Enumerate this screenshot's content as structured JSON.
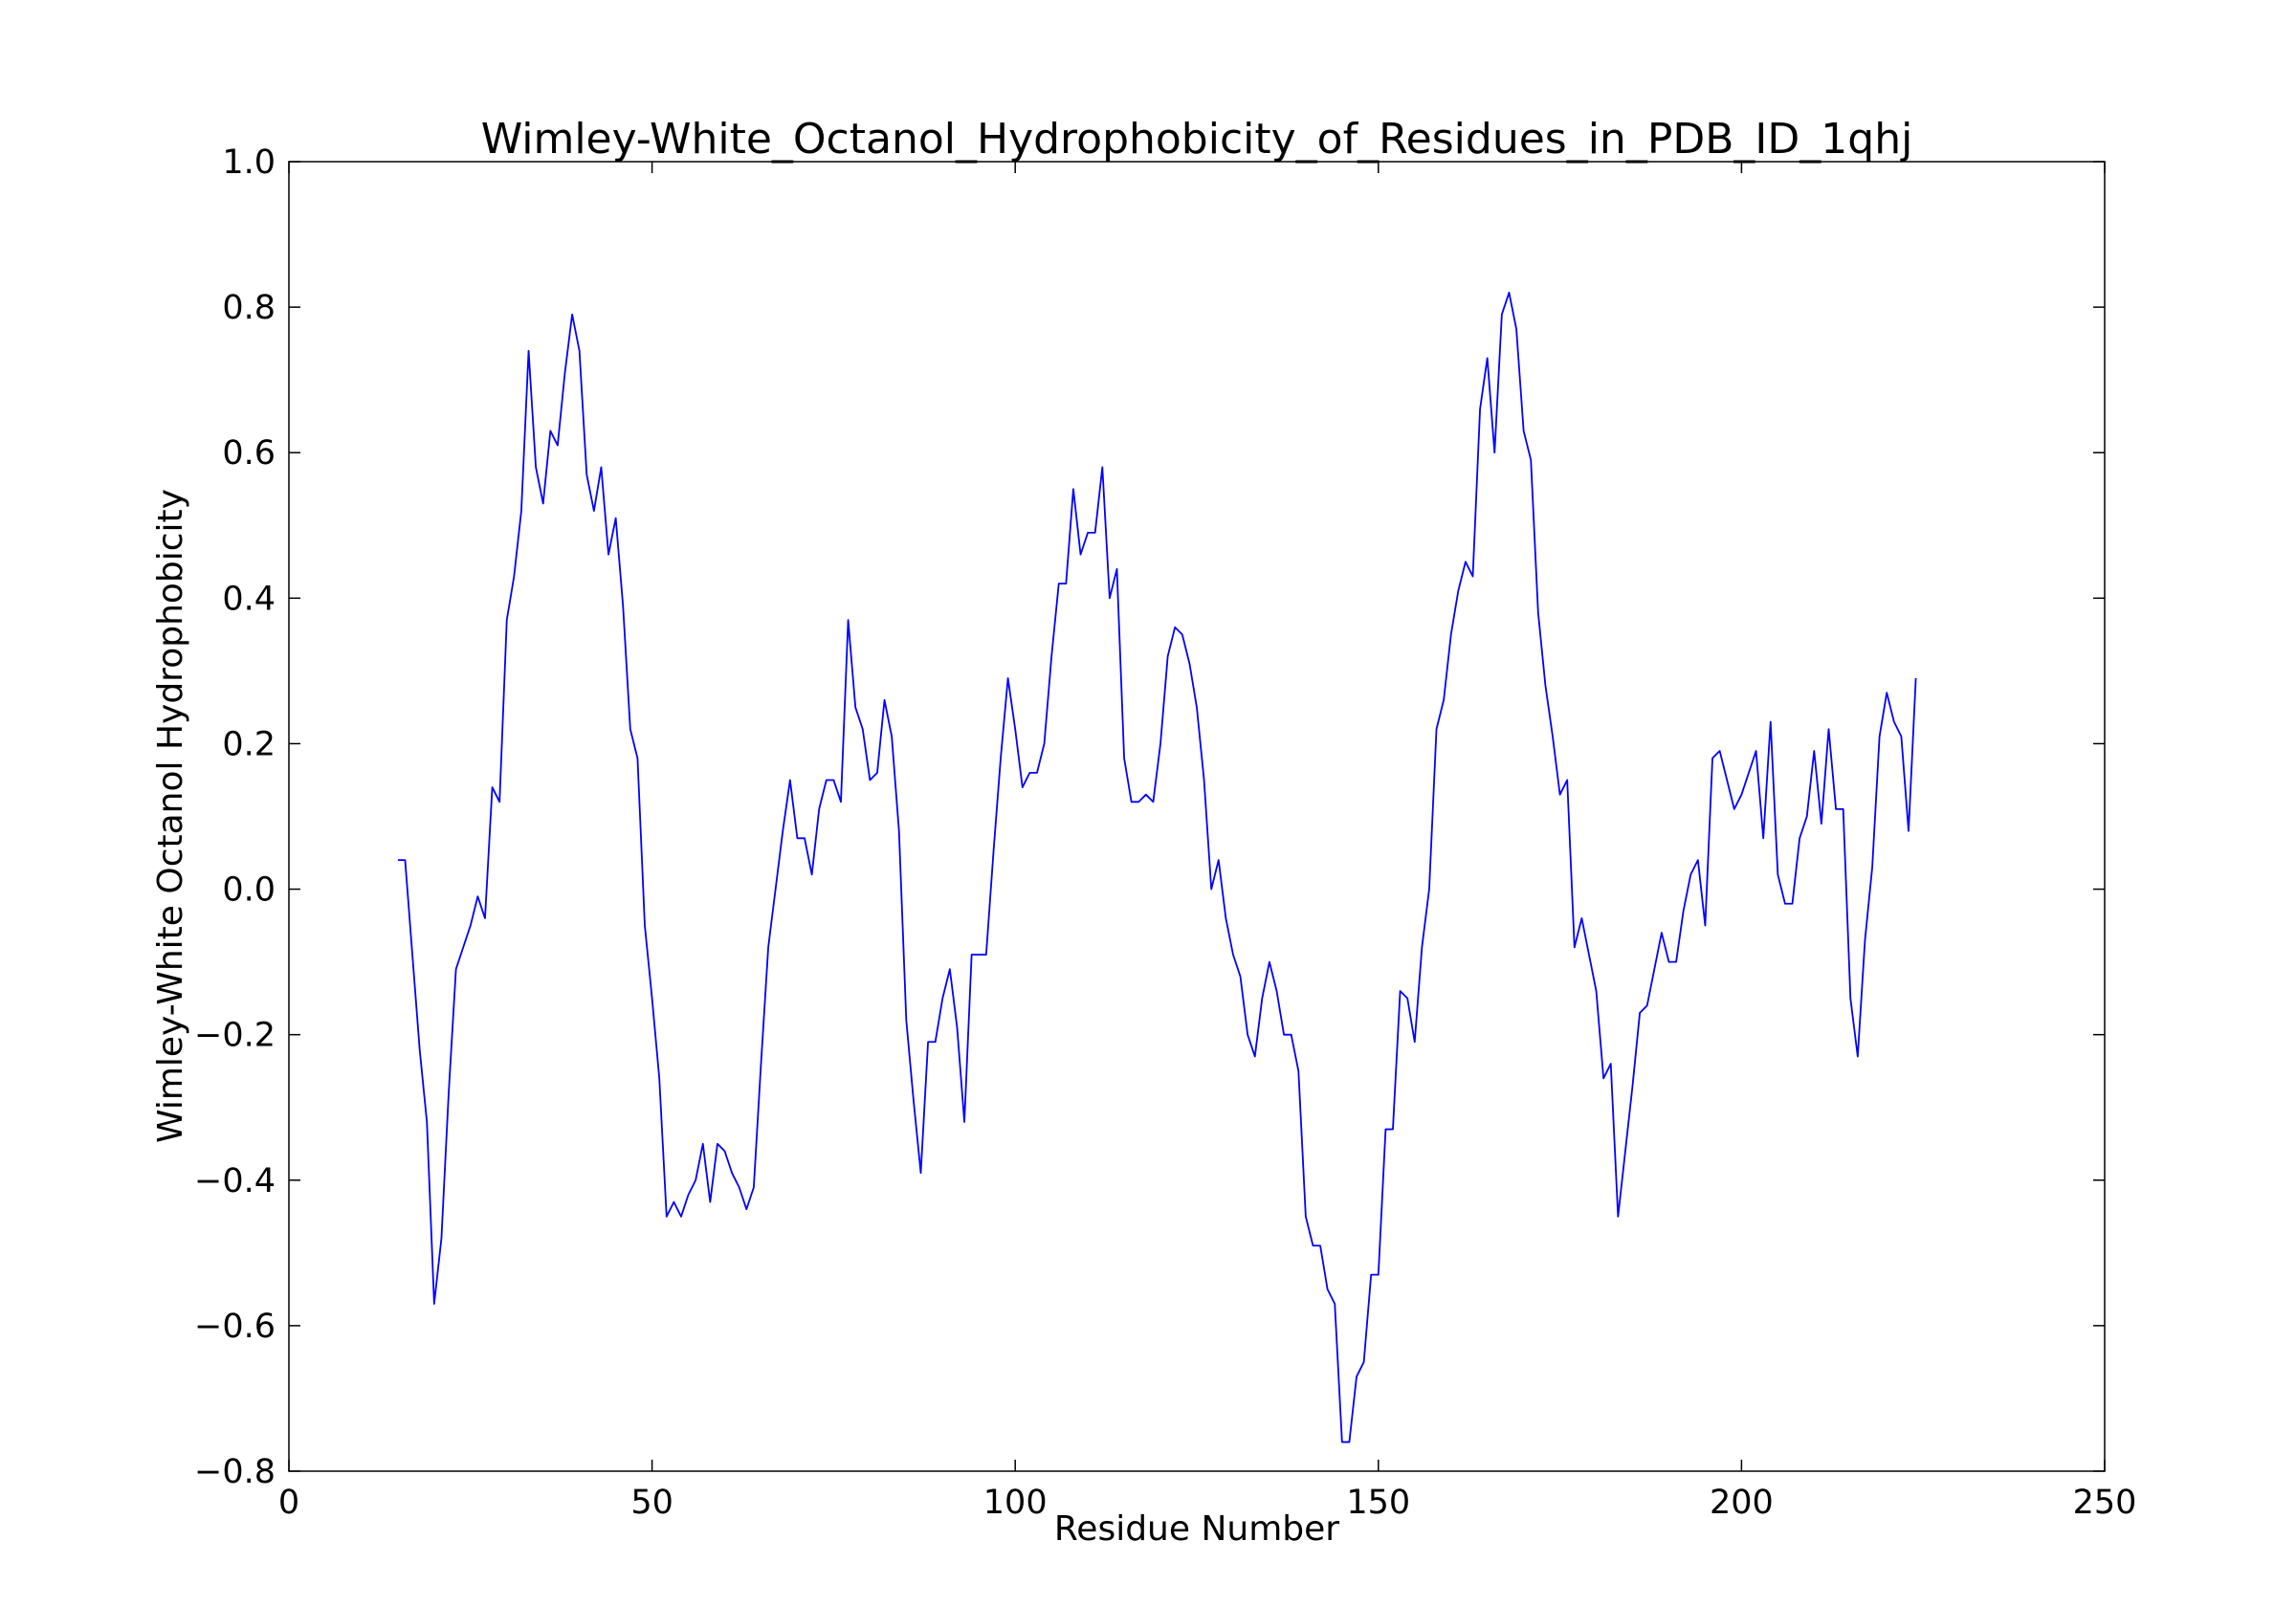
{
  "chart_data": {
    "type": "line",
    "title": "Wimley-White_Octanol_Hydrophobicity_of_Residues_in_PDB_ID_1qhj",
    "xlabel": "Residue Number",
    "ylabel": "Wimley-White Octanol Hydrophobicity",
    "xlim": [
      0,
      250
    ],
    "ylim": [
      -0.8,
      1.0
    ],
    "xticks": [
      0,
      50,
      100,
      150,
      200,
      250
    ],
    "yticks": [
      -0.8,
      -0.6,
      -0.4,
      -0.2,
      0.0,
      0.2,
      0.4,
      0.6,
      0.8,
      1.0
    ],
    "xtick_labels": [
      "0",
      "50",
      "100",
      "150",
      "200",
      "250"
    ],
    "ytick_labels": [
      "−0.8",
      "−0.6",
      "−0.4",
      "−0.2",
      "0.0",
      "0.2",
      "0.4",
      "0.6",
      "0.8",
      "1.0"
    ],
    "grid": false,
    "color": "#0000ff",
    "series": [
      {
        "x": [
          15,
          16,
          17,
          18,
          19,
          20,
          21,
          22,
          23,
          24,
          25,
          26,
          27,
          28,
          29,
          30,
          31,
          32,
          33,
          34,
          35,
          36,
          37,
          38,
          39,
          40,
          41,
          42,
          43,
          44,
          45,
          46,
          47,
          48,
          49,
          50,
          51,
          52,
          53,
          54,
          55,
          56,
          57,
          58,
          59,
          60,
          61,
          62,
          63,
          64,
          65,
          66,
          67,
          68,
          69,
          70,
          71,
          72,
          73,
          74,
          75,
          76,
          77,
          78,
          79,
          80,
          81,
          82,
          83,
          84,
          85,
          86,
          87,
          88,
          89,
          90,
          91,
          92,
          93,
          94,
          95,
          96,
          97,
          98,
          99,
          100,
          101,
          102,
          103,
          104,
          105,
          106,
          107,
          108,
          109,
          110,
          111,
          112,
          113,
          114,
          115,
          116,
          117,
          118,
          119,
          120,
          121,
          122,
          123,
          124,
          125,
          126,
          127,
          128,
          129,
          130,
          131,
          132,
          133,
          134,
          135,
          136,
          137,
          138,
          139,
          140,
          141,
          142,
          143,
          144,
          145,
          146,
          147,
          148,
          149,
          150,
          151,
          152,
          153,
          154,
          155,
          156,
          157,
          158,
          159,
          160,
          161,
          162,
          163,
          164,
          165,
          166,
          167,
          168,
          169,
          170,
          171,
          172,
          173,
          174,
          175,
          176,
          177,
          178,
          179,
          180,
          181,
          182,
          183,
          184,
          185,
          186,
          187,
          188,
          189,
          190,
          191,
          192,
          193,
          194,
          195,
          196,
          197,
          198,
          199,
          200,
          201,
          202,
          203,
          204,
          205,
          206,
          207,
          208,
          209,
          210,
          211,
          212,
          213,
          214,
          215,
          216,
          217,
          218,
          219,
          220,
          221,
          222,
          223,
          224
        ],
        "y": [
          0.04,
          0.04,
          -0.09,
          -0.22,
          -0.32,
          -0.57,
          -0.48,
          -0.28,
          -0.11,
          -0.08,
          -0.05,
          -0.01,
          -0.04,
          0.14,
          0.12,
          0.37,
          0.43,
          0.52,
          0.74,
          0.58,
          0.53,
          0.63,
          0.61,
          0.71,
          0.79,
          0.74,
          0.57,
          0.52,
          0.58,
          0.46,
          0.51,
          0.39,
          0.22,
          0.18,
          -0.05,
          -0.15,
          -0.26,
          -0.45,
          -0.43,
          -0.45,
          -0.42,
          -0.4,
          -0.35,
          -0.43,
          -0.35,
          -0.36,
          -0.39,
          -0.41,
          -0.44,
          -0.41,
          -0.24,
          -0.08,
          0.0,
          0.08,
          0.15,
          0.07,
          0.07,
          0.02,
          0.11,
          0.15,
          0.15,
          0.12,
          0.37,
          0.25,
          0.22,
          0.15,
          0.16,
          0.26,
          0.21,
          0.08,
          -0.18,
          -0.29,
          -0.39,
          -0.21,
          -0.21,
          -0.15,
          -0.11,
          -0.19,
          -0.32,
          -0.09,
          -0.09,
          -0.09,
          0.05,
          0.18,
          0.29,
          0.22,
          0.14,
          0.16,
          0.16,
          0.2,
          0.32,
          0.42,
          0.42,
          0.55,
          0.46,
          0.49,
          0.49,
          0.58,
          0.4,
          0.44,
          0.18,
          0.12,
          0.12,
          0.13,
          0.12,
          0.2,
          0.32,
          0.36,
          0.35,
          0.31,
          0.25,
          0.15,
          0.0,
          0.04,
          -0.04,
          -0.09,
          -0.12,
          -0.2,
          -0.23,
          -0.15,
          -0.1,
          -0.14,
          -0.2,
          -0.2,
          -0.25,
          -0.45,
          -0.49,
          -0.49,
          -0.55,
          -0.57,
          -0.76,
          -0.76,
          -0.67,
          -0.65,
          -0.53,
          -0.53,
          -0.33,
          -0.33,
          -0.14,
          -0.15,
          -0.21,
          -0.08,
          0.0,
          0.22,
          0.26,
          0.35,
          0.41,
          0.45,
          0.43,
          0.66,
          0.73,
          0.6,
          0.79,
          0.82,
          0.77,
          0.63,
          0.59,
          0.38,
          0.28,
          0.21,
          0.13,
          0.15,
          -0.08,
          -0.04,
          -0.09,
          -0.14,
          -0.26,
          -0.24,
          -0.45,
          -0.36,
          -0.27,
          -0.17,
          -0.16,
          -0.11,
          -0.06,
          -0.1,
          -0.1,
          -0.03,
          0.02,
          0.04,
          -0.05,
          0.18,
          0.19,
          0.15,
          0.11,
          0.13,
          0.16,
          0.19,
          0.07,
          0.23,
          0.02,
          -0.02,
          -0.02,
          0.07,
          0.1,
          0.19,
          0.09,
          0.22,
          0.11,
          0.11,
          -0.15,
          -0.23,
          -0.07,
          0.03,
          0.21,
          0.27,
          0.23,
          0.21,
          0.08,
          0.29
        ]
      }
    ]
  }
}
